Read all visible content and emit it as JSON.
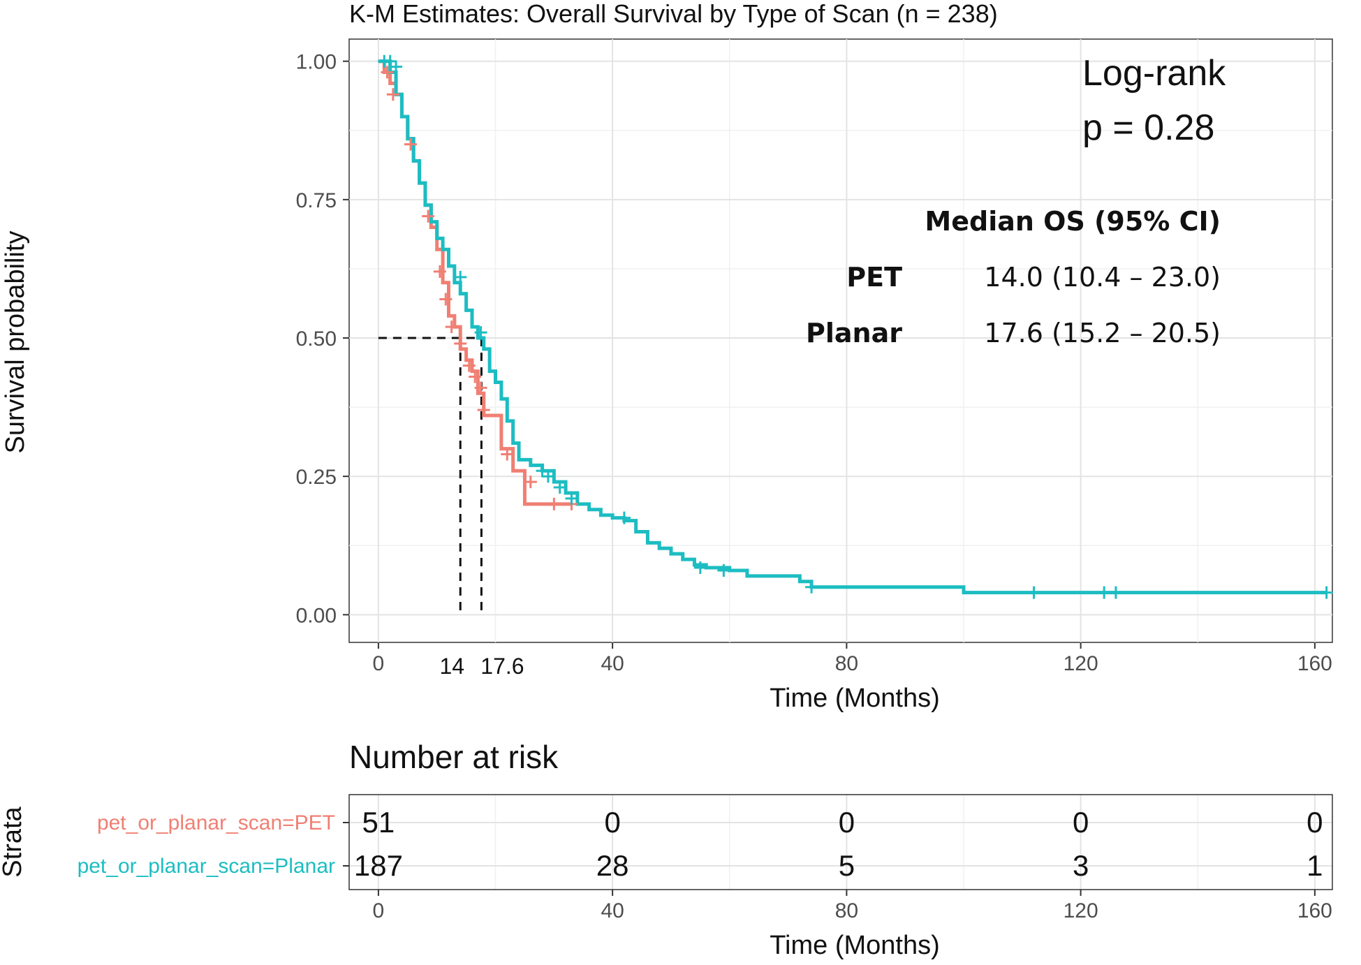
{
  "chart_data": {
    "type": "line",
    "title": "K-M Estimates: Overall Survival by Type of Scan (n =  238)",
    "xlabel": "Time (Months)",
    "ylabel": "Survival probability",
    "xlim": [
      -5,
      163
    ],
    "ylim": [
      -0.05,
      1.04
    ],
    "x_ticks": [
      "0",
      "40",
      "80",
      "120",
      "160"
    ],
    "x_tick_values": [
      0,
      40,
      80,
      120,
      160
    ],
    "y_ticks": [
      "0.00",
      "0.25",
      "0.50",
      "0.75",
      "1.00"
    ],
    "y_tick_values": [
      0,
      0.25,
      0.5,
      0.75,
      1.0
    ],
    "grid": true,
    "median_lines": {
      "level": 0.5,
      "x": [
        14,
        17.6
      ],
      "labels": [
        "14",
        "17.6"
      ]
    },
    "series": [
      {
        "name": "pet_or_planar_scan=PET",
        "color": "#f07f73",
        "steps": [
          [
            0,
            1.0
          ],
          [
            1,
            0.98
          ],
          [
            2,
            0.96
          ],
          [
            3,
            0.94
          ],
          [
            4,
            0.9
          ],
          [
            5,
            0.86
          ],
          [
            6,
            0.82
          ],
          [
            7,
            0.78
          ],
          [
            8,
            0.74
          ],
          [
            9,
            0.7
          ],
          [
            10,
            0.66
          ],
          [
            11,
            0.6
          ],
          [
            12,
            0.54
          ],
          [
            13,
            0.52
          ],
          [
            14,
            0.48
          ],
          [
            15,
            0.46
          ],
          [
            16,
            0.44
          ],
          [
            17,
            0.4
          ],
          [
            18,
            0.36
          ],
          [
            21,
            0.3
          ],
          [
            23,
            0.26
          ],
          [
            25,
            0.2
          ],
          [
            33,
            0.2
          ]
        ],
        "censors": [
          [
            1.5,
            0.98
          ],
          [
            2.5,
            0.94
          ],
          [
            5.5,
            0.85
          ],
          [
            8.5,
            0.72
          ],
          [
            10.5,
            0.62
          ],
          [
            11.5,
            0.57
          ],
          [
            12.5,
            0.52
          ],
          [
            14,
            0.49
          ],
          [
            15.5,
            0.45
          ],
          [
            16.5,
            0.43
          ],
          [
            17.5,
            0.41
          ],
          [
            18,
            0.37
          ],
          [
            22,
            0.29
          ],
          [
            26,
            0.24
          ],
          [
            30,
            0.2
          ],
          [
            33,
            0.2
          ]
        ]
      },
      {
        "name": "pet_or_planar_scan=Planar",
        "color": "#1cbdc2",
        "steps": [
          [
            0,
            1.0
          ],
          [
            2,
            0.98
          ],
          [
            3,
            0.94
          ],
          [
            4,
            0.9
          ],
          [
            5,
            0.86
          ],
          [
            6,
            0.82
          ],
          [
            7,
            0.78
          ],
          [
            8,
            0.74
          ],
          [
            9,
            0.71
          ],
          [
            10,
            0.68
          ],
          [
            11,
            0.66
          ],
          [
            12,
            0.63
          ],
          [
            13,
            0.6
          ],
          [
            14,
            0.58
          ],
          [
            15,
            0.55
          ],
          [
            16,
            0.52
          ],
          [
            17,
            0.5
          ],
          [
            18,
            0.48
          ],
          [
            19,
            0.44
          ],
          [
            20,
            0.42
          ],
          [
            21,
            0.39
          ],
          [
            22,
            0.35
          ],
          [
            23,
            0.31
          ],
          [
            24,
            0.28
          ],
          [
            26,
            0.27
          ],
          [
            28,
            0.26
          ],
          [
            30,
            0.24
          ],
          [
            32,
            0.22
          ],
          [
            34,
            0.2
          ],
          [
            36,
            0.19
          ],
          [
            38,
            0.18
          ],
          [
            40,
            0.175
          ],
          [
            42,
            0.17
          ],
          [
            44,
            0.15
          ],
          [
            46,
            0.13
          ],
          [
            48,
            0.12
          ],
          [
            50,
            0.11
          ],
          [
            52,
            0.1
          ],
          [
            54,
            0.09
          ],
          [
            56,
            0.085
          ],
          [
            60,
            0.08
          ],
          [
            63,
            0.07
          ],
          [
            68,
            0.07
          ],
          [
            72,
            0.06
          ],
          [
            74,
            0.05
          ],
          [
            99,
            0.05
          ],
          [
            100,
            0.04
          ],
          [
            162,
            0.04
          ]
        ],
        "censors": [
          [
            1,
            1.0
          ],
          [
            2,
            1.0
          ],
          [
            3,
            0.99
          ],
          [
            14,
            0.61
          ],
          [
            17.5,
            0.51
          ],
          [
            28,
            0.26
          ],
          [
            29,
            0.25
          ],
          [
            31,
            0.23
          ],
          [
            33,
            0.21
          ],
          [
            42,
            0.175
          ],
          [
            55,
            0.085
          ],
          [
            59,
            0.08
          ],
          [
            74,
            0.05
          ],
          [
            112,
            0.04
          ],
          [
            124,
            0.04
          ],
          [
            126,
            0.04
          ],
          [
            162,
            0.04
          ]
        ]
      }
    ]
  },
  "annotations": {
    "logrank_label": "Log-rank",
    "p_value": "p = 0.28",
    "median_header": "Median OS (95% CI)",
    "rows": [
      {
        "label": "PET",
        "value": "14.0 (10.4 – 23.0)"
      },
      {
        "label": "Planar",
        "value": "17.6 (15.2 – 20.5)"
      }
    ]
  },
  "risk_table": {
    "title": "Number at risk",
    "ylabel": "Strata",
    "xlabel": "Time (Months)",
    "time_points": [
      0,
      40,
      80,
      120,
      160
    ],
    "tick_labels": [
      "0",
      "40",
      "80",
      "120",
      "160"
    ],
    "strata": [
      {
        "name": "pet_or_planar_scan=PET",
        "color": "#f07f73",
        "counts": [
          "51",
          "0",
          "0",
          "0",
          "0"
        ]
      },
      {
        "name": "pet_or_planar_scan=Planar",
        "color": "#1cbdc2",
        "counts": [
          "187",
          "28",
          "5",
          "3",
          "1"
        ]
      }
    ]
  }
}
